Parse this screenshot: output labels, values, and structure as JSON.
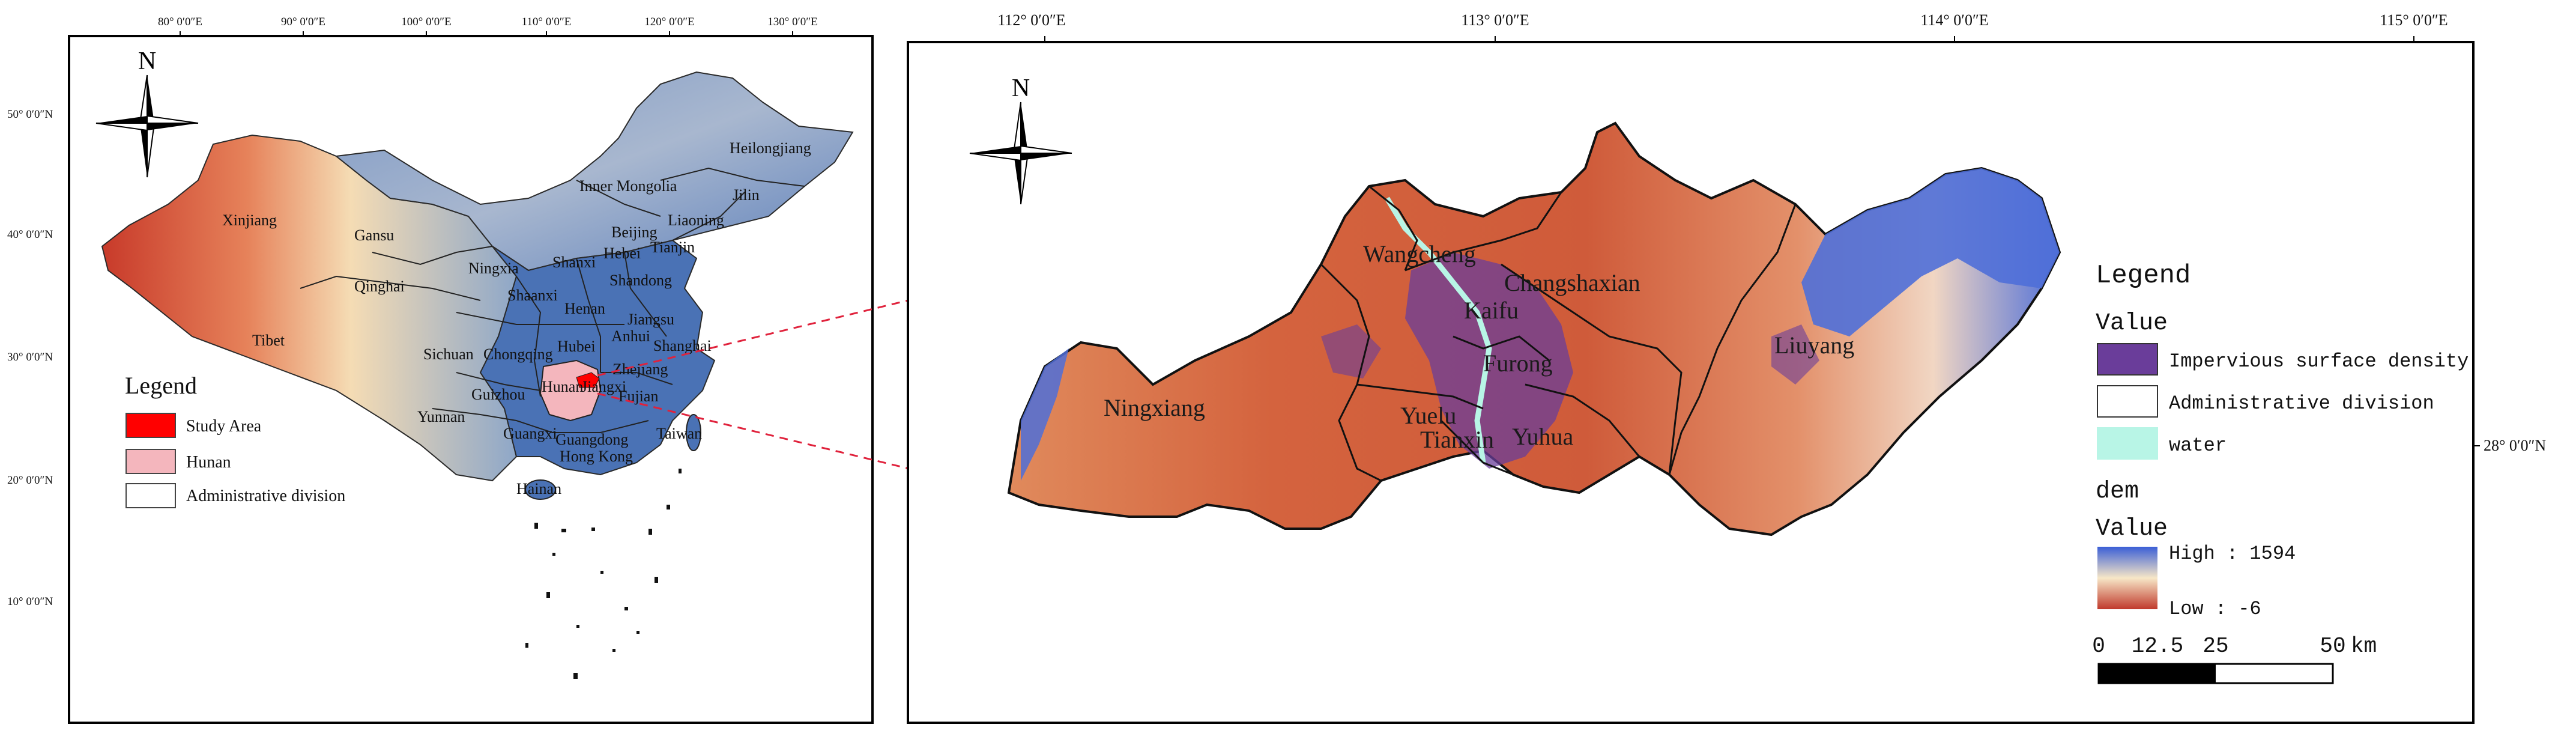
{
  "left_map": {
    "graticule_top": [
      "80° 0′0″E",
      "90° 0′0″E",
      "100° 0′0″E",
      "110° 0′0″E",
      "120° 0′0″E",
      "130° 0′0″E"
    ],
    "graticule_left": [
      "50° 0′0″N",
      "40° 0′0″N",
      "30° 0′0″N",
      "20° 0′0″N",
      "10° 0′0″N"
    ],
    "north": "N",
    "provinces": {
      "xinjiang": "Xinjiang",
      "tibet": "Tibet",
      "qinghai": "Qinghai",
      "gansu": "Gansu",
      "inner_mongolia": "Inner Mongolia",
      "heilongjiang": "Heilongjiang",
      "jilin": "Jilin",
      "liaoning": "Liaoning",
      "beijing": "Beijing",
      "tianjin": "Tianjin",
      "hebei": "Hebei",
      "ningxia": "Ningxia",
      "shanxi": "Shanxi",
      "shaanxi": "Shaanxi",
      "shandong": "Shandong",
      "henan": "Henan",
      "jiangsu": "Jiangsu",
      "anhui": "Anhui",
      "shanghai": "Shanghai",
      "hubei": "Hubei",
      "sichuan": "Sichuan",
      "chongqing": "Chongqing",
      "zhejiang": "Zhejiang",
      "hunan": "Hunan",
      "jiangxi": "Jiangxi",
      "guizhou": "Guizhou",
      "fujian": "Fujian",
      "yunnan": "Yunnan",
      "guangxi": "Guangxi",
      "guangdong": "Guangdong",
      "taiwan": "Taiwan",
      "hong_kong": "Hong Kong",
      "hainan": "Hainan"
    },
    "legend": {
      "title": "Legend",
      "items": [
        {
          "label": "Study Area",
          "color": "#ff0000"
        },
        {
          "label": "Hunan",
          "color": "#f4b6bd"
        },
        {
          "label": "Administrative division",
          "color": "#ffffff"
        }
      ]
    }
  },
  "right_map": {
    "graticule_top": [
      "112° 0′0″E",
      "113° 0′0″E",
      "114° 0′0″E",
      "115° 0′0″E"
    ],
    "graticule_right": "28° 0′0″N",
    "north": "N",
    "counties": {
      "ningxiang": "Ningxiang",
      "wangcheng": "Wangcheng",
      "changshaxian": "Changshaxian",
      "kaifu": "Kaifu",
      "furong": "Furong",
      "yuelu": "Yuelu",
      "tianxin": "Tianxin",
      "yuhua": "Yuhua",
      "liuyang": "Liuyang"
    },
    "legend": {
      "title": "Legend",
      "value_header": "Value",
      "items": [
        {
          "label": "Impervious surface density",
          "color": "#6a3d9a"
        },
        {
          "label": "Administrative division",
          "color": "#ffffff"
        },
        {
          "label": "water",
          "color": "#b8f5e6"
        }
      ],
      "dem_header": "dem",
      "dem_value_header": "Value",
      "high_label": "High : 1594",
      "low_label": "Low : -6",
      "dem_high": 1594,
      "dem_low": -6
    },
    "scale_bar": {
      "ticks": [
        "0",
        "12.5",
        "25",
        "50"
      ],
      "unit": "km"
    }
  },
  "colors": {
    "china_east": "#4a72b5",
    "dem_low": "#c0392b",
    "dem_mid": "#f7e7c7",
    "dem_high": "#3b5fd6",
    "impervious": "#6a3d9a",
    "water": "#b8f5e6",
    "study_area": "#ff0000",
    "hunan": "#f4b6bd",
    "connector": "#e0223c"
  }
}
